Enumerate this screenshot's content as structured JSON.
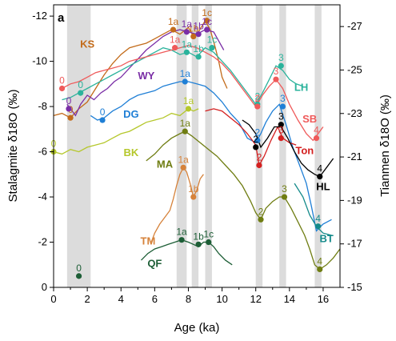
{
  "panel_letter": "a",
  "chart_data": {
    "type": "line",
    "xlabel": "Age (ka)",
    "ylabel_left": "Stalagmite δ18O (‰)",
    "ylabel_right": "Tianmen δ18O (‰)",
    "xlim": [
      0,
      17
    ],
    "ylim_left": [
      0,
      -12.5
    ],
    "ylim_right": [
      -15,
      -28
    ],
    "x_ticks": [
      0,
      2,
      4,
      6,
      8,
      10,
      12,
      14,
      16
    ],
    "x_tick_labels": [
      "0",
      "2",
      "4",
      "6",
      "8",
      "10",
      "12",
      "14",
      "16"
    ],
    "y_left_ticks": [
      0,
      -2,
      -4,
      -6,
      -8,
      -10,
      -12
    ],
    "y_left_tick_labels": [
      "0",
      "-2",
      "-4",
      "-6",
      "-8",
      "-10",
      "-12"
    ],
    "y_right_ticks": [
      -15,
      -17,
      -19,
      -21,
      -23,
      -25,
      -27
    ],
    "y_right_tick_labels": [
      "-15",
      "-17",
      "-19",
      "-21",
      "-23",
      "-25",
      "-27"
    ],
    "shaded_bands": [
      {
        "x0": 0.8,
        "x1": 2.2
      },
      {
        "x0": 7.3,
        "x1": 7.9
      },
      {
        "x0": 8.2,
        "x1": 8.6
      },
      {
        "x0": 9.0,
        "x1": 9.4
      },
      {
        "x0": 12.0,
        "x1": 12.4
      },
      {
        "x0": 13.4,
        "x1": 13.8
      },
      {
        "x0": 15.5,
        "x1": 15.9
      }
    ],
    "series": [
      {
        "name": "KS",
        "color": "#c36b1a",
        "axis": "left",
        "x": [
          0,
          0.5,
          1.0,
          1.5,
          2.0,
          2.5,
          3.0,
          3.5,
          4.0,
          4.5,
          5.0,
          5.5,
          6.0,
          6.5,
          7.0,
          7.5,
          8.0,
          8.3,
          8.6,
          9.0,
          9.3,
          9.6,
          9.8,
          10.0,
          10.3
        ],
        "y": [
          -7.6,
          -7.7,
          -7.5,
          -7.9,
          -8.2,
          -8.8,
          -9.4,
          -9.9,
          -10.3,
          -10.6,
          -10.7,
          -10.8,
          -11.0,
          -11.2,
          -11.4,
          -11.2,
          -11.5,
          -11.1,
          -11.3,
          -11.8,
          -11.4,
          -10.6,
          -10.0,
          -9.3,
          -8.8
        ],
        "label_x": 2.0,
        "label_y": -10.6
      },
      {
        "name": "WY",
        "color": "#7a2ea6",
        "axis": "left",
        "x": [
          0.8,
          1.0,
          1.3,
          1.6,
          2.0,
          2.4,
          2.8,
          3.2,
          3.6,
          4.0,
          4.5,
          5.0,
          5.5,
          6.0,
          6.5,
          7.0,
          7.5,
          8.0,
          8.5,
          9.0,
          9.5,
          9.8,
          10.1
        ],
        "y": [
          -8.1,
          -7.9,
          -7.6,
          -8.1,
          -8.5,
          -8.3,
          -8.6,
          -8.8,
          -9.1,
          -9.3,
          -9.7,
          -10.1,
          -10.5,
          -10.8,
          -11.1,
          -11.3,
          -11.4,
          -11.3,
          -11.2,
          -11.4,
          -11.3,
          -10.9,
          -10.5
        ],
        "label_x": 5.5,
        "label_y": -9.2
      },
      {
        "name": "DG",
        "color": "#1f7fd6",
        "axis": "left",
        "x": [
          2.2,
          2.6,
          3.0,
          3.5,
          4.0,
          4.5,
          5.0,
          5.5,
          6.0,
          6.5,
          7.0,
          7.5,
          8.0,
          8.5,
          9.0,
          9.5,
          10.0,
          10.5,
          11.0,
          11.5,
          12.0,
          12.3,
          12.6,
          13.0,
          13.4,
          13.8,
          14.2,
          14.6,
          15.0,
          15.3,
          15.6,
          16.0,
          16.5
        ],
        "y": [
          -7.6,
          -7.4,
          -7.5,
          -7.8,
          -8.0,
          -8.3,
          -8.5,
          -8.6,
          -8.7,
          -8.9,
          -9.0,
          -9.1,
          -9.1,
          -9.0,
          -8.9,
          -8.6,
          -8.2,
          -7.7,
          -7.3,
          -6.6,
          -6.4,
          -6.8,
          -7.3,
          -7.8,
          -8.1,
          -7.2,
          -6.2,
          -5.4,
          -4.6,
          -3.6,
          -2.5,
          -2.8,
          -3.0
        ],
        "label_x": 4.6,
        "label_y": -7.5
      },
      {
        "name": "BK",
        "color": "#b5c72b",
        "axis": "left",
        "x": [
          0,
          0.5,
          1.0,
          1.5,
          2.0,
          2.5,
          3.0,
          3.5,
          4.0,
          4.5,
          5.0,
          5.5,
          6.0,
          6.5,
          7.0,
          7.5,
          8.0,
          8.3,
          8.6
        ],
        "y": [
          -6.0,
          -5.9,
          -6.1,
          -6.0,
          -6.2,
          -6.3,
          -6.4,
          -6.6,
          -6.8,
          -6.9,
          -7.1,
          -7.3,
          -7.4,
          -7.5,
          -7.7,
          -7.6,
          -7.9,
          -7.8,
          -7.9
        ],
        "label_x": 4.6,
        "label_y": -5.8
      },
      {
        "name": "MA",
        "color": "#6f7d12",
        "axis": "left",
        "x": [
          5.5,
          6.0,
          6.5,
          7.0,
          7.5,
          7.8,
          8.2,
          8.7,
          9.2,
          9.7,
          10.2,
          10.7,
          11.2,
          11.7,
          12.0,
          12.3,
          12.6,
          13.0,
          13.4,
          13.7,
          14.1,
          14.5,
          14.9,
          15.2,
          15.5,
          15.8,
          16.2,
          16.6,
          17.0
        ],
        "y": [
          -5.6,
          -5.9,
          -6.3,
          -6.6,
          -6.8,
          -6.9,
          -6.7,
          -6.4,
          -6.1,
          -5.8,
          -5.4,
          -5.0,
          -4.5,
          -3.8,
          -3.3,
          -3.0,
          -3.5,
          -3.8,
          -4.0,
          -4.0,
          -3.5,
          -2.9,
          -2.3,
          -1.7,
          -1.0,
          -0.8,
          -1.0,
          -1.3,
          -1.7
        ],
        "label_x": 6.6,
        "label_y": -5.3
      },
      {
        "name": "TM",
        "color": "#d6823a",
        "axis": "left",
        "x": [
          5.8,
          6.0,
          6.3,
          6.6,
          6.9,
          7.1,
          7.3,
          7.5,
          7.7,
          7.9,
          8.1,
          8.3,
          8.5,
          8.7,
          8.9
        ],
        "y": [
          -2.0,
          -2.4,
          -2.8,
          -3.1,
          -3.4,
          -3.9,
          -4.5,
          -5.0,
          -5.3,
          -5.1,
          -4.6,
          -4.0,
          -4.3,
          -4.8,
          -5.0
        ],
        "label_x": 5.6,
        "label_y": -1.9
      },
      {
        "name": "QF",
        "color": "#1d5e36",
        "axis": "left",
        "x": [
          5.2,
          5.6,
          6.0,
          6.4,
          6.8,
          7.2,
          7.6,
          8.0,
          8.3,
          8.6,
          8.9,
          9.2,
          9.5,
          9.8,
          10.2,
          10.6
        ],
        "y": [
          -1.2,
          -1.5,
          -1.7,
          -1.8,
          -1.9,
          -2.0,
          -2.1,
          -2.0,
          -1.9,
          -1.8,
          -2.0,
          -2.0,
          -1.8,
          -1.5,
          -1.2,
          -1.0
        ],
        "label_x": 6.0,
        "label_y": -0.9
      },
      {
        "name": "LH",
        "color": "#2bb39c",
        "axis": "left",
        "x": [
          0.5,
          1.0,
          1.5,
          2.0,
          2.5,
          3.0,
          3.5,
          4.0,
          4.5,
          5.0,
          5.5,
          6.0,
          6.5,
          7.0,
          7.5,
          8.0,
          8.5,
          9.0,
          9.5,
          10.0,
          10.5,
          11.0,
          11.5,
          12.0,
          12.4,
          12.8,
          13.2,
          13.6,
          14.0,
          14.4,
          14.8
        ],
        "y": [
          -8.3,
          -8.4,
          -8.6,
          -8.8,
          -9.0,
          -9.2,
          -9.4,
          -9.6,
          -9.8,
          -10.0,
          -10.2,
          -10.4,
          -10.6,
          -10.5,
          -10.3,
          -10.4,
          -10.2,
          -10.6,
          -10.4,
          -10.0,
          -9.6,
          -9.1,
          -8.6,
          -8.1,
          -8.6,
          -9.2,
          -9.8,
          -9.6,
          -9.2,
          -9.0,
          -8.9
        ],
        "label_x": 14.7,
        "label_y": -8.7
      },
      {
        "name": "SB",
        "color": "#ef5a5a",
        "axis": "left",
        "x": [
          0.5,
          1.0,
          1.5,
          2.0,
          2.5,
          3.0,
          3.5,
          4.0,
          4.5,
          5.0,
          5.5,
          6.0,
          6.5,
          7.0,
          7.5,
          8.0,
          8.5,
          9.0,
          9.5,
          10.0,
          10.5,
          11.0,
          11.5,
          12.0,
          12.4,
          12.8,
          13.2,
          13.6,
          14.0,
          14.5,
          15.0,
          15.4,
          15.7,
          16.0
        ],
        "y": [
          -8.8,
          -9.0,
          -9.1,
          -9.3,
          -9.5,
          -9.6,
          -9.7,
          -9.8,
          -10.0,
          -10.1,
          -10.2,
          -10.3,
          -10.4,
          -10.5,
          -10.6,
          -10.7,
          -10.6,
          -10.4,
          -10.2,
          -9.9,
          -9.5,
          -9.0,
          -8.5,
          -8.0,
          -8.5,
          -8.9,
          -9.2,
          -8.8,
          -8.1,
          -7.4,
          -6.8,
          -6.5,
          -6.8,
          -7.1
        ],
        "label_x": 15.2,
        "label_y": -7.3
      },
      {
        "name": "Ton",
        "color": "#d42020",
        "axis": "left",
        "x": [
          9.0,
          9.5,
          10.0,
          10.5,
          11.0,
          11.5,
          12.0,
          12.2,
          12.5,
          12.9,
          13.3,
          13.6,
          14.0,
          14.4
        ],
        "y": [
          -7.8,
          -7.9,
          -7.8,
          -7.5,
          -7.2,
          -6.8,
          -6.3,
          -5.4,
          -5.8,
          -6.5,
          -7.1,
          -6.6,
          -6.4,
          -6.3
        ],
        "label_x": 14.9,
        "label_y": -5.9
      },
      {
        "name": "HL",
        "color": "#000000",
        "axis": "left",
        "x": [
          11.2,
          11.6,
          12.0,
          12.3,
          12.7,
          13.1,
          13.5,
          13.9,
          14.3,
          14.7,
          15.1,
          15.5,
          15.8,
          16.2,
          16.6
        ],
        "y": [
          -7.4,
          -7.2,
          -6.8,
          -6.2,
          -6.6,
          -7.1,
          -7.1,
          -6.6,
          -6.0,
          -5.5,
          -5.2,
          -5.0,
          -4.9,
          -5.3,
          -5.7
        ],
        "label_x": 16.0,
        "label_y": -4.3
      },
      {
        "name": "BT",
        "color": "#148a8a",
        "axis": "left",
        "x": [
          14.3,
          14.8,
          15.2,
          15.6,
          16.0,
          16.5
        ],
        "y": [
          -4.6,
          -4.0,
          -3.2,
          -2.7,
          -2.4,
          -2.3
        ],
        "label_x": 16.2,
        "label_y": -2.0
      }
    ],
    "labeled_points": [
      {
        "series": "KS",
        "x": 1.0,
        "y": -7.5,
        "label": "0"
      },
      {
        "series": "KS",
        "x": 7.1,
        "y": -11.4,
        "label": "1a"
      },
      {
        "series": "KS",
        "x": 8.3,
        "y": -11.1,
        "label": "1b"
      },
      {
        "series": "KS",
        "x": 9.1,
        "y": -11.8,
        "label": "1c"
      },
      {
        "series": "WY",
        "x": 0.9,
        "y": -7.9,
        "label": "0"
      },
      {
        "series": "WY",
        "x": 7.9,
        "y": -11.3,
        "label": "1a"
      },
      {
        "series": "WY",
        "x": 8.6,
        "y": -11.2,
        "label": "1b"
      },
      {
        "series": "WY",
        "x": 9.1,
        "y": -11.4,
        "label": "1c"
      },
      {
        "series": "LH",
        "x": 1.6,
        "y": -8.6,
        "label": "0"
      },
      {
        "series": "LH",
        "x": 7.9,
        "y": -10.4,
        "label": "1a"
      },
      {
        "series": "LH",
        "x": 8.6,
        "y": -10.2,
        "label": "1b"
      },
      {
        "series": "LH",
        "x": 9.4,
        "y": -10.6,
        "label": "1c"
      },
      {
        "series": "LH",
        "x": 12.1,
        "y": -8.1,
        "label": "2"
      },
      {
        "series": "LH",
        "x": 13.5,
        "y": -9.8,
        "label": "3"
      },
      {
        "series": "SB",
        "x": 0.5,
        "y": -8.8,
        "label": "0"
      },
      {
        "series": "SB",
        "x": 7.2,
        "y": -10.6,
        "label": "1a"
      },
      {
        "series": "SB",
        "x": 12.1,
        "y": -8.0,
        "label": "2"
      },
      {
        "series": "SB",
        "x": 13.2,
        "y": -9.2,
        "label": "3"
      },
      {
        "series": "SB",
        "x": 15.6,
        "y": -6.6,
        "label": "4"
      },
      {
        "series": "DG",
        "x": 2.9,
        "y": -7.4,
        "label": "0"
      },
      {
        "series": "DG",
        "x": 7.8,
        "y": -9.1,
        "label": "1a"
      },
      {
        "series": "DG",
        "x": 12.1,
        "y": -6.5,
        "label": "2"
      },
      {
        "series": "DG",
        "x": 13.6,
        "y": -8.0,
        "label": "3"
      },
      {
        "series": "BK",
        "x": 0,
        "y": -6.0,
        "label": "0"
      },
      {
        "series": "BK",
        "x": 8.0,
        "y": -7.9,
        "label": "1a"
      },
      {
        "series": "MA",
        "x": 7.8,
        "y": -6.9,
        "label": "1a"
      },
      {
        "series": "MA",
        "x": 12.3,
        "y": -3.0,
        "label": "2"
      },
      {
        "series": "MA",
        "x": 13.7,
        "y": -4.0,
        "label": "3"
      },
      {
        "series": "MA",
        "x": 15.8,
        "y": -0.8,
        "label": "4"
      },
      {
        "series": "TM",
        "x": 7.7,
        "y": -5.3,
        "label": "1a"
      },
      {
        "series": "TM",
        "x": 8.3,
        "y": -4.0,
        "label": "1b"
      },
      {
        "series": "QF",
        "x": 1.5,
        "y": -0.5,
        "label": "0"
      },
      {
        "series": "QF",
        "x": 7.6,
        "y": -2.1,
        "label": "1a"
      },
      {
        "series": "QF",
        "x": 8.6,
        "y": -1.9,
        "label": "1b"
      },
      {
        "series": "QF",
        "x": 9.2,
        "y": -2.0,
        "label": "1c"
      },
      {
        "series": "HL",
        "x": 12.0,
        "y": -6.2,
        "label": "2"
      },
      {
        "series": "HL",
        "x": 13.5,
        "y": -7.2,
        "label": "3"
      },
      {
        "series": "HL",
        "x": 15.8,
        "y": -4.9,
        "label": "4"
      },
      {
        "series": "Ton",
        "x": 12.2,
        "y": -5.4,
        "label": "2"
      },
      {
        "series": "Ton",
        "x": 13.5,
        "y": -6.6,
        "label": "3"
      },
      {
        "series": "BT",
        "x": 15.7,
        "y": -2.7,
        "label": "4"
      }
    ],
    "grid": false
  }
}
